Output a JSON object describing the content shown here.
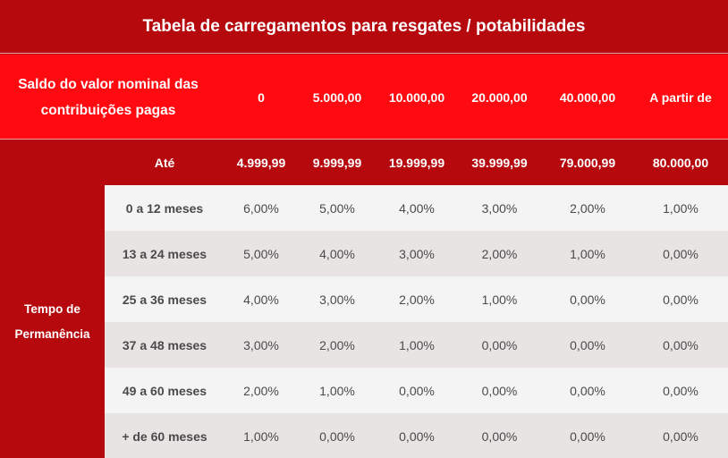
{
  "title": "Tabela de carregamentos para resgates / potabilidades",
  "header": {
    "label": "Saldo do valor nominal das contribuições pagas",
    "from": [
      "0",
      "5.000,00",
      "10.000,00",
      "20.000,00",
      "40.000,00",
      "A partir de"
    ]
  },
  "until": {
    "label": "Até",
    "values": [
      "4.999,99",
      "9.999,99",
      "19.999,99",
      "39.999,99",
      "79.000,99",
      "80.000,00"
    ]
  },
  "side_label": "Tempo de Permanência",
  "rows": [
    {
      "label": "0 a 12 meses",
      "values": [
        "6,00%",
        "5,00%",
        "4,00%",
        "3,00%",
        "2,00%",
        "1,00%"
      ]
    },
    {
      "label": "13 a 24 meses",
      "values": [
        "5,00%",
        "4,00%",
        "3,00%",
        "2,00%",
        "1,00%",
        "0,00%"
      ]
    },
    {
      "label": "25 a 36 meses",
      "values": [
        "4,00%",
        "3,00%",
        "2,00%",
        "1,00%",
        "0,00%",
        "0,00%"
      ]
    },
    {
      "label": "37 a 48 meses",
      "values": [
        "3,00%",
        "2,00%",
        "1,00%",
        "0,00%",
        "0,00%",
        "0,00%"
      ]
    },
    {
      "label": "49 a 60 meses",
      "values": [
        "2,00%",
        "1,00%",
        "0,00%",
        "0,00%",
        "0,00%",
        "0,00%"
      ]
    },
    {
      "label": "+ de 60 meses",
      "values": [
        "1,00%",
        "0,00%",
        "0,00%",
        "0,00%",
        "0,00%",
        "0,00%"
      ]
    }
  ]
}
